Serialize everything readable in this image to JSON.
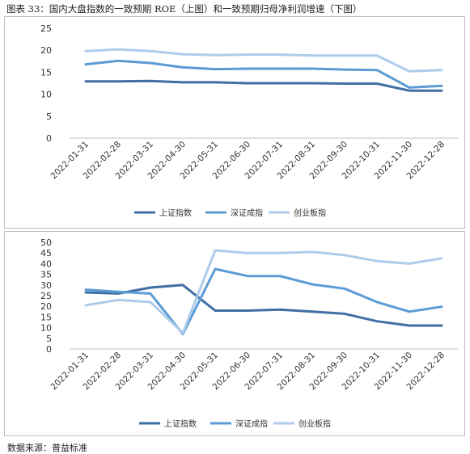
{
  "caption": "图表 33：国内大盘指数的一致预期 ROE（上图）和一致预期归母净利润增速（下图）",
  "source": "数据来源：普益标准",
  "colors": {
    "series1": "#3f6fa3",
    "series2": "#5b9bd5",
    "series3": "#aecbeb",
    "grid": "#d9d9d9",
    "axis": "#bfbfbf"
  },
  "chart_data": [
    {
      "type": "line",
      "categories": [
        "2022-01-31",
        "2022-02-28",
        "2022-03-31",
        "2022-04-30",
        "2022-05-31",
        "2022-06-30",
        "2022-07-31",
        "2022-08-31",
        "2022-09-30",
        "2022-10-31",
        "2022-11-30",
        "2022-12-28"
      ],
      "ylim": [
        0,
        25
      ],
      "yticks": [
        0,
        5,
        10,
        15,
        20,
        25
      ],
      "grid": false,
      "legend_position": "bottom",
      "series": [
        {
          "name": "上证指数",
          "values": [
            12.9,
            12.9,
            13.0,
            12.7,
            12.7,
            12.5,
            12.5,
            12.5,
            12.4,
            12.4,
            10.8,
            10.8
          ]
        },
        {
          "name": "深证成指",
          "values": [
            16.8,
            17.6,
            17.1,
            16.1,
            15.7,
            15.8,
            15.8,
            15.8,
            15.6,
            15.5,
            11.5,
            11.9
          ]
        },
        {
          "name": "创业板指",
          "values": [
            19.8,
            20.2,
            19.8,
            19.1,
            18.9,
            19.0,
            19.0,
            18.8,
            18.8,
            18.8,
            15.2,
            15.5
          ]
        }
      ]
    },
    {
      "type": "line",
      "categories": [
        "2022-01-31",
        "2022-02-28",
        "2022-03-31",
        "2022-04-30",
        "2022-05-31",
        "2022-06-30",
        "2022-07-31",
        "2022-08-31",
        "2022-09-30",
        "2022-10-31",
        "2022-11-30",
        "2022-12-28"
      ],
      "ylim": [
        0,
        50
      ],
      "yticks": [
        0,
        5,
        10,
        15,
        20,
        25,
        30,
        35,
        40,
        45,
        50
      ],
      "grid": false,
      "legend_position": "bottom",
      "series": [
        {
          "name": "上证指数",
          "values": [
            26.5,
            26.0,
            28.8,
            30.0,
            18.0,
            18.0,
            18.5,
            17.5,
            16.5,
            13.0,
            11.0,
            11.0
          ]
        },
        {
          "name": "深证成指",
          "values": [
            27.8,
            26.8,
            26.0,
            7.0,
            37.5,
            34.2,
            34.2,
            30.3,
            28.3,
            22.0,
            17.5,
            19.8
          ]
        },
        {
          "name": "创业板指",
          "values": [
            20.5,
            23.0,
            22.0,
            7.5,
            46.2,
            45.0,
            45.0,
            45.5,
            44.0,
            41.2,
            40.0,
            42.5
          ]
        }
      ]
    }
  ]
}
